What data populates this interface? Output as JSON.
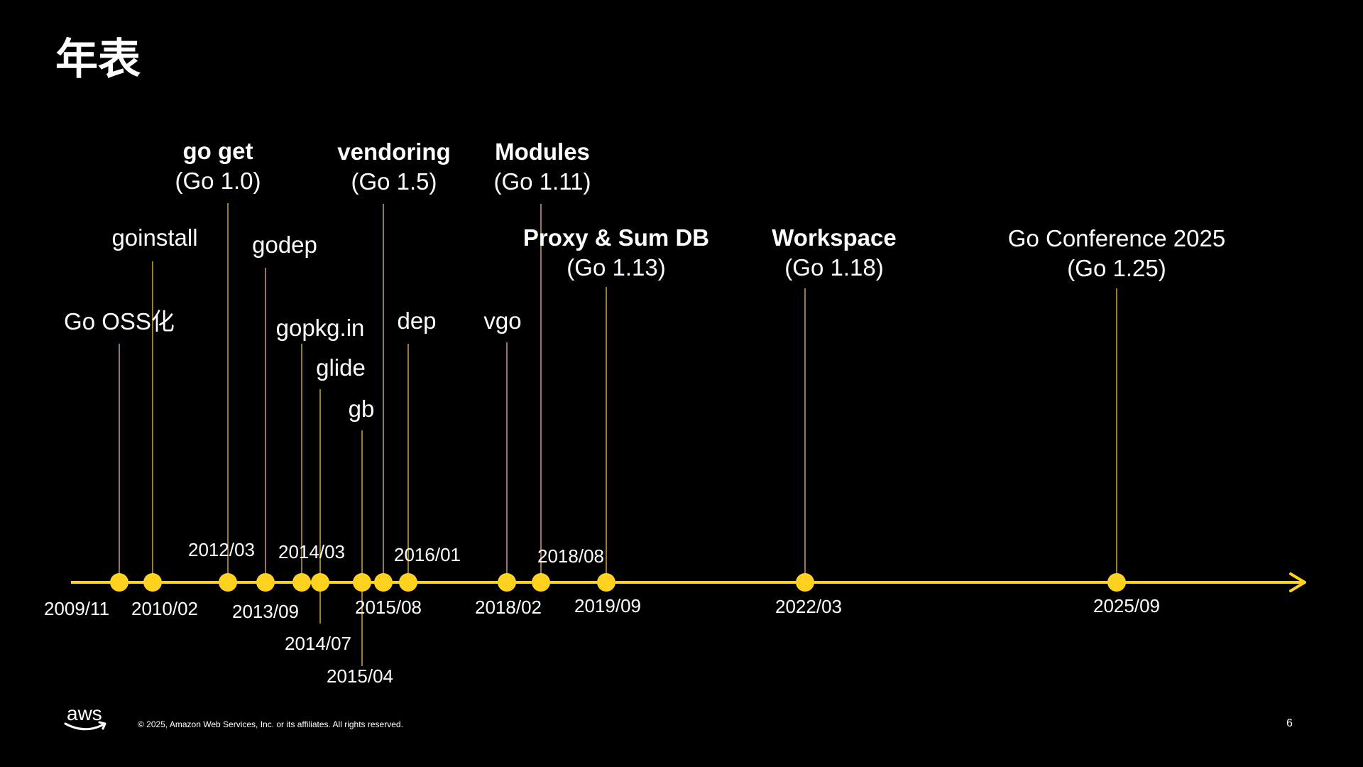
{
  "slide": {
    "title": "年表",
    "copyright": "© 2025, Amazon Web Services, Inc. or its affiliates. All rights reserved.",
    "page_number": "6",
    "logo_text": "aws"
  },
  "colors": {
    "background": "#000000",
    "accent": "#FFD21F",
    "text": "#FFFFFF",
    "connector": "#C9A44A"
  },
  "timeline": {
    "events": [
      {
        "id": "go-oss",
        "date": "2009/11",
        "lines": [
          "Go OSS化"
        ],
        "bold": false
      },
      {
        "id": "goinstall",
        "date": "2010/02",
        "lines": [
          "goinstall"
        ],
        "bold": false
      },
      {
        "id": "go-get",
        "date": "2012/03",
        "lines": [
          "go get",
          "(Go 1.0)"
        ],
        "bold": true
      },
      {
        "id": "godep",
        "date": "2013/09",
        "lines": [
          "godep"
        ],
        "bold": false
      },
      {
        "id": "gopkg-in",
        "date": "2014/03",
        "lines": [
          "gopkg.in"
        ],
        "bold": false
      },
      {
        "id": "glide",
        "date": "2014/07",
        "lines": [
          "glide"
        ],
        "bold": false
      },
      {
        "id": "gb",
        "date": "2015/04",
        "lines": [
          "gb"
        ],
        "bold": false
      },
      {
        "id": "vendoring",
        "date": "2015/08",
        "lines": [
          "vendoring",
          "(Go 1.5)"
        ],
        "bold": true
      },
      {
        "id": "dep",
        "date": "2016/01",
        "lines": [
          "dep"
        ],
        "bold": false
      },
      {
        "id": "vgo",
        "date": "2018/02",
        "lines": [
          "vgo"
        ],
        "bold": false
      },
      {
        "id": "modules",
        "date": "2018/08",
        "lines": [
          "Modules",
          "(Go 1.11)"
        ],
        "bold": true
      },
      {
        "id": "proxy-sumdb",
        "date": "2019/09",
        "lines": [
          "Proxy & Sum DB",
          "(Go 1.13)"
        ],
        "bold": true
      },
      {
        "id": "workspace",
        "date": "2022/03",
        "lines": [
          "Workspace",
          "(Go 1.18)"
        ],
        "bold": true
      },
      {
        "id": "goconference",
        "date": "2025/09",
        "lines": [
          "Go Conference 2025",
          "(Go 1.25)"
        ],
        "bold": false
      }
    ]
  }
}
